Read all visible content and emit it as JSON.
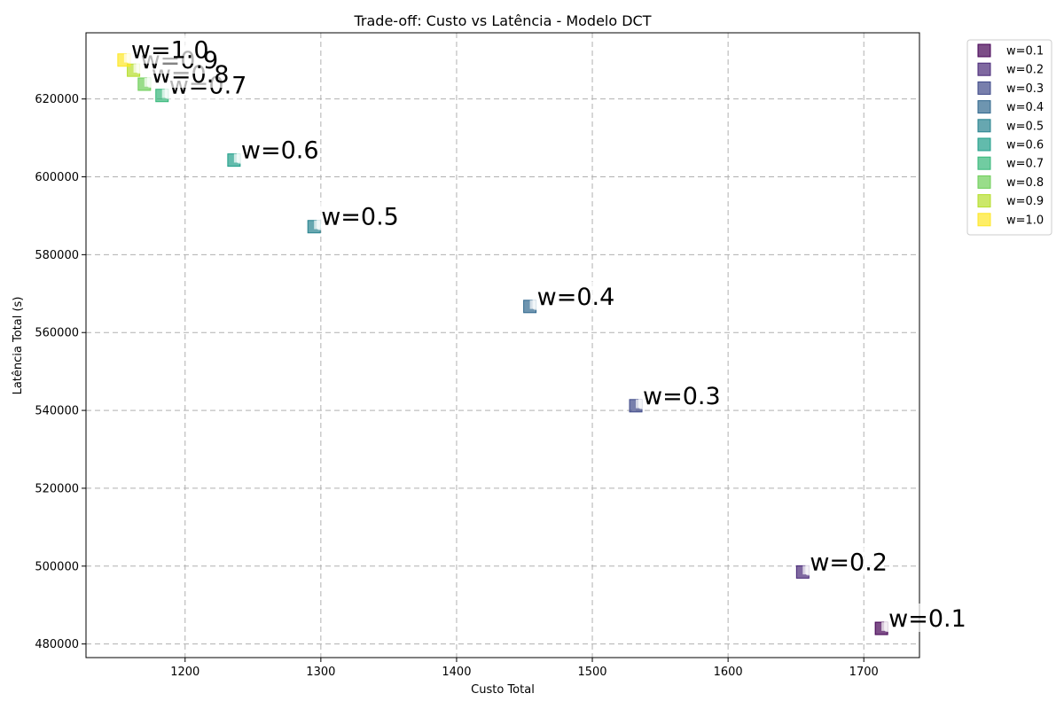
{
  "chart_data": {
    "type": "scatter",
    "title": "Trade-off: Custo vs Latência - Modelo DCT",
    "xlabel": "Custo Total",
    "ylabel": "Latência Total (s)",
    "xlim": [
      1127,
      1741
    ],
    "ylim": [
      476500,
      637000
    ],
    "xticks": [
      1200,
      1300,
      1400,
      1500,
      1600,
      1700
    ],
    "yticks": [
      480000,
      500000,
      520000,
      540000,
      560000,
      580000,
      600000,
      620000
    ],
    "grid": true,
    "legend_position": "outside-top-right",
    "marker": "square",
    "series": [
      {
        "name": "w=0.1",
        "label": "w=0.1",
        "color": "#440154",
        "x": 1713,
        "y": 484000
      },
      {
        "name": "w=0.2",
        "label": "w=0.2",
        "color": "#482878",
        "x": 1655,
        "y": 498500
      },
      {
        "name": "w=0.3",
        "label": "w=0.3",
        "color": "#3e4989",
        "x": 1532,
        "y": 541200
      },
      {
        "name": "w=0.4",
        "label": "w=0.4",
        "color": "#31688e",
        "x": 1454,
        "y": 566700
      },
      {
        "name": "w=0.5",
        "label": "w=0.5",
        "color": "#26828e",
        "x": 1295,
        "y": 587200
      },
      {
        "name": "w=0.6",
        "label": "w=0.6",
        "color": "#1f9e89",
        "x": 1236,
        "y": 604300
      },
      {
        "name": "w=0.7",
        "label": "w=0.7",
        "color": "#35b779",
        "x": 1183,
        "y": 620900
      },
      {
        "name": "w=0.8",
        "label": "w=0.8",
        "color": "#6ece58",
        "x": 1170,
        "y": 623800
      },
      {
        "name": "w=0.9",
        "label": "w=0.9",
        "color": "#b5de2b",
        "x": 1162,
        "y": 627400
      },
      {
        "name": "w=1.0",
        "label": "w=1.0",
        "color": "#fde725",
        "x": 1155,
        "y": 630000
      }
    ]
  }
}
